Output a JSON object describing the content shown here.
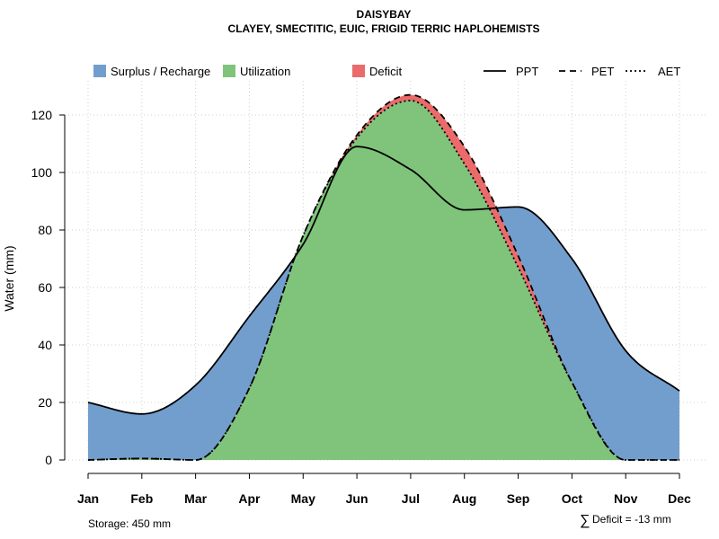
{
  "chart_data": {
    "type": "area",
    "title": "DAISYBAY",
    "subtitle": "CLAYEY, SMECTITIC, EUIC, FRIGID TERRIC HAPLOHEMISTS",
    "xlabel": "",
    "ylabel": "Water (mm)",
    "ylim": [
      0,
      130
    ],
    "yticks": [
      0,
      20,
      40,
      60,
      80,
      100,
      120
    ],
    "categories": [
      "Jan",
      "Feb",
      "Mar",
      "Apr",
      "May",
      "Jun",
      "Jul",
      "Aug",
      "Sep",
      "Oct",
      "Nov",
      "Dec"
    ],
    "grid": true,
    "series": [
      {
        "name": "PPT",
        "style": "solid",
        "values": [
          20,
          16,
          26,
          50,
          75,
          109,
          101,
          87,
          88,
          70,
          38,
          24
        ]
      },
      {
        "name": "PET",
        "style": "dashed",
        "values": [
          0,
          0.5,
          0,
          25,
          78,
          113,
          127,
          109,
          71,
          27,
          0,
          0
        ]
      },
      {
        "name": "AET",
        "style": "dotted",
        "values": [
          0,
          0.5,
          0,
          25,
          78,
          112,
          125,
          103,
          67,
          27,
          0,
          0
        ]
      }
    ],
    "legend": [
      {
        "label": "Surplus / Recharge",
        "kind": "fill",
        "color": "#729ECE"
      },
      {
        "label": "Utilization",
        "kind": "fill",
        "color": "#7FC47A"
      },
      {
        "label": "Deficit",
        "kind": "fill",
        "color": "#EB6A6A"
      },
      {
        "label": "PPT",
        "kind": "line",
        "style": "solid"
      },
      {
        "label": "PET",
        "kind": "line",
        "style": "dashed"
      },
      {
        "label": "AET",
        "kind": "line",
        "style": "dotted"
      }
    ],
    "legend_position": "top",
    "annotations": {
      "storage": "Storage: 450 mm",
      "deficit_symbol": "∑",
      "deficit": "Deficit = -13 mm"
    },
    "colors": {
      "surplus": "#729ECE",
      "utilization": "#7FC47A",
      "deficit": "#EB6A6A",
      "grid": "#cfcfcf"
    }
  }
}
